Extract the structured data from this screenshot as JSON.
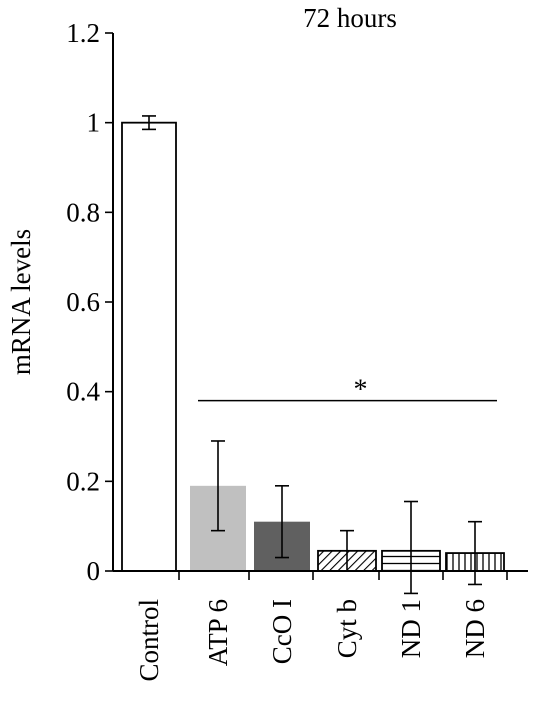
{
  "chart_data": {
    "type": "bar",
    "title": "72 hours",
    "xlabel": "",
    "ylabel": "mRNA levels",
    "ylim": [
      0,
      1.2
    ],
    "yticks": [
      0,
      0.2,
      0.4,
      0.6,
      0.8,
      1,
      1.2
    ],
    "ytick_labels": [
      "0",
      "0.2",
      "0.4",
      "0.6",
      "0.8",
      "1",
      "1.2"
    ],
    "grid": false,
    "categories": [
      "Control",
      "ATP 6",
      "CcO I",
      "Cyt b",
      "ND 1",
      "ND 6"
    ],
    "values": [
      1.0,
      0.19,
      0.11,
      0.045,
      0.045,
      0.04
    ],
    "errors": [
      0.015,
      0.1,
      0.08,
      0.045,
      0.11,
      0.07
    ],
    "bar_styles": [
      {
        "fill": "#ffffff",
        "pattern": "none"
      },
      {
        "fill": "#c0c0c0",
        "pattern": "none"
      },
      {
        "fill": "#606060",
        "pattern": "none"
      },
      {
        "fill": "#ffffff",
        "pattern": "diagonal"
      },
      {
        "fill": "#ffffff",
        "pattern": "horizontal"
      },
      {
        "fill": "#ffffff",
        "pattern": "vertical"
      }
    ],
    "significance": {
      "symbol": "*",
      "from_category": "ATP 6",
      "to_category": "ND 6",
      "value": 0.38
    }
  }
}
